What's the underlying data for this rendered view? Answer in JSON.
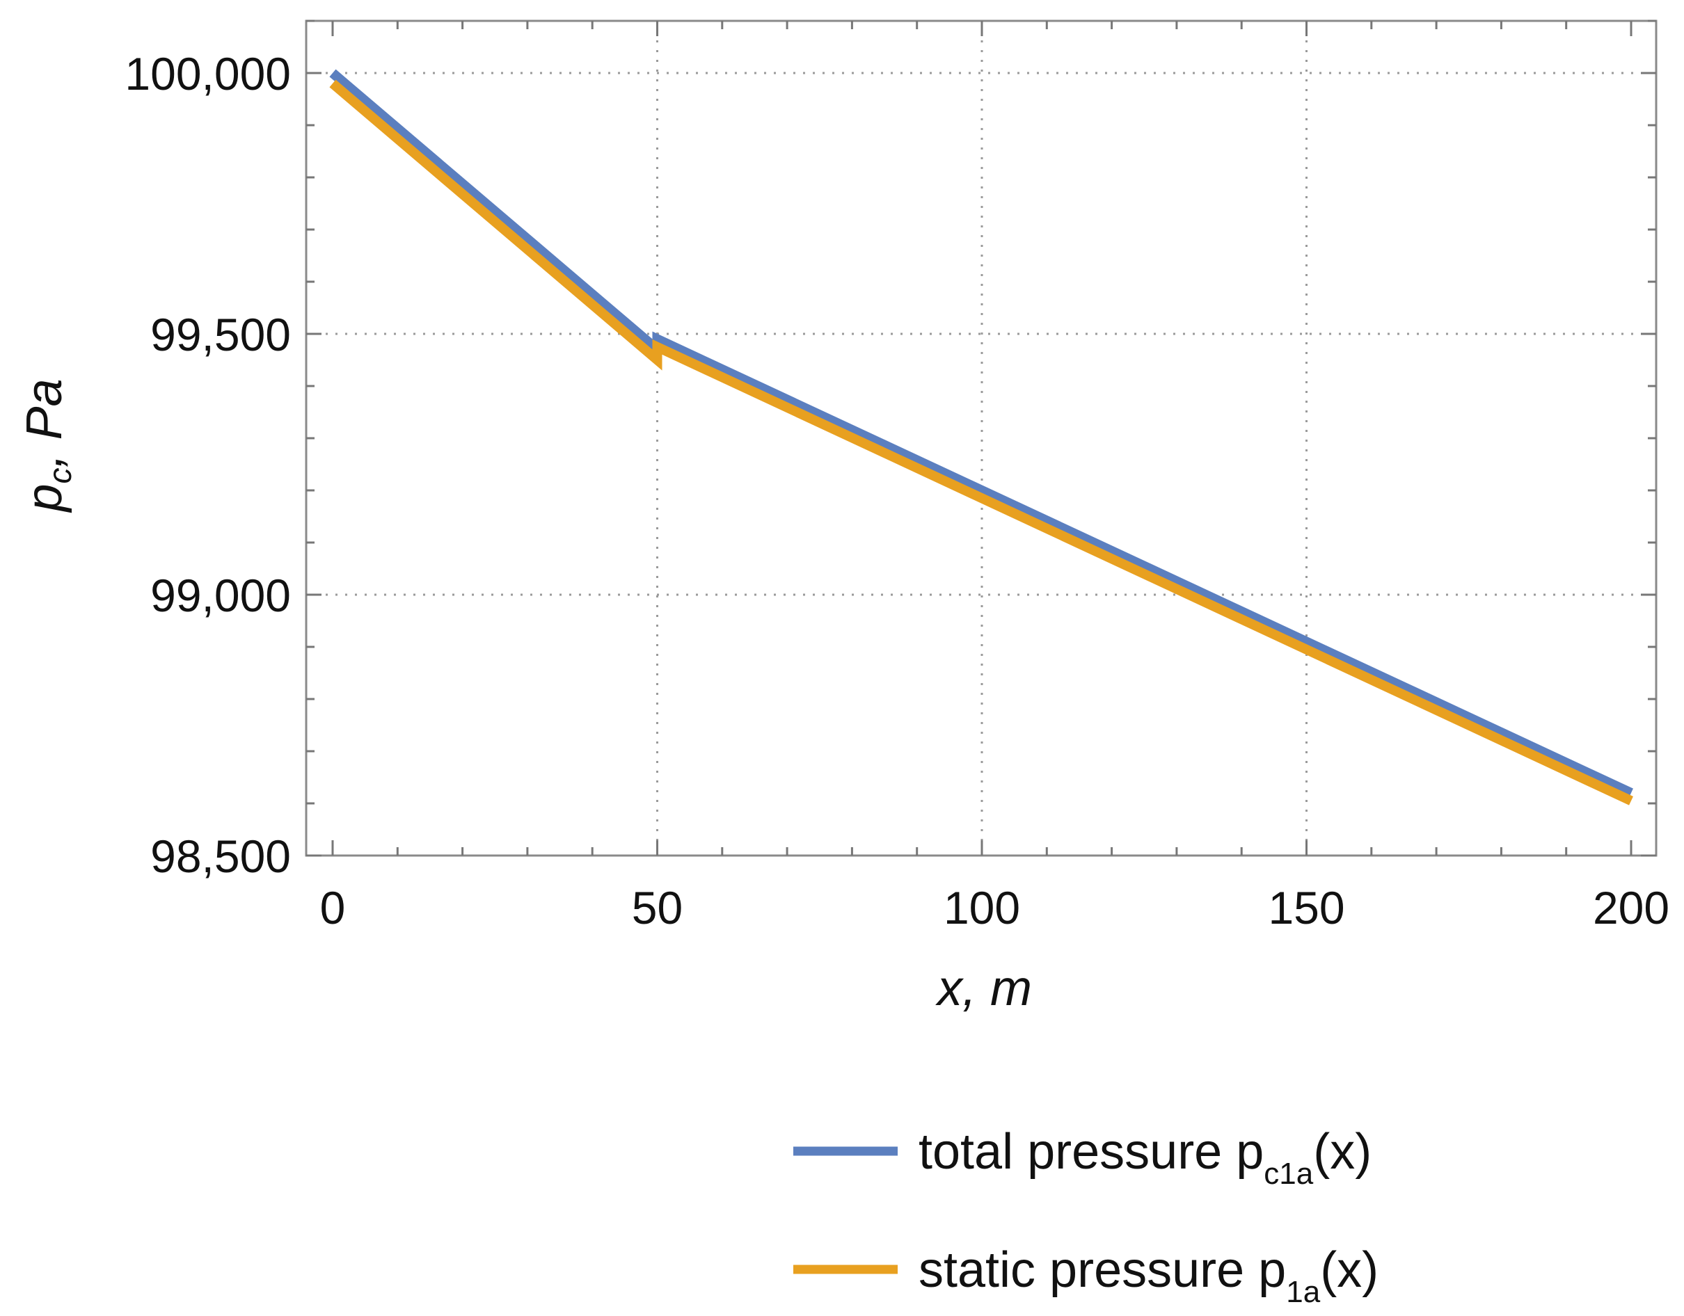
{
  "chart_data": {
    "type": "line",
    "title": "",
    "xlabel": "x, m",
    "ylabel_parts": {
      "p": "p",
      "sub": "c",
      "rest": ", Pa"
    },
    "xlim": [
      0,
      200
    ],
    "ylim": [
      98500,
      100100
    ],
    "x_ticks": [
      0,
      50,
      100,
      150,
      200
    ],
    "x_tick_labels": [
      "0",
      "50",
      "100",
      "150",
      "200"
    ],
    "y_ticks": [
      98500,
      99000,
      99500,
      100000
    ],
    "y_tick_labels": [
      "98,500",
      "99,000",
      "99,500",
      "100,000"
    ],
    "grid": "dotted at major ticks",
    "legend_position": "bottom-right, below plot",
    "series": [
      {
        "name": "total pressure p_c1a(x)",
        "legend_main": "total pressure p",
        "legend_sub": "c1a",
        "legend_tail": "(x)",
        "color": "#5b7fbf",
        "x": [
          0,
          50,
          50,
          200
        ],
        "y": [
          100000,
          99470,
          99490,
          98620
        ]
      },
      {
        "name": "static pressure p_1a(x)",
        "legend_main": "static pressure p",
        "legend_sub": "1a",
        "legend_tail": "(x)",
        "color": "#e8a020",
        "x": [
          0,
          50,
          50,
          200
        ],
        "y": [
          99980,
          99450,
          99475,
          98605
        ]
      }
    ]
  }
}
